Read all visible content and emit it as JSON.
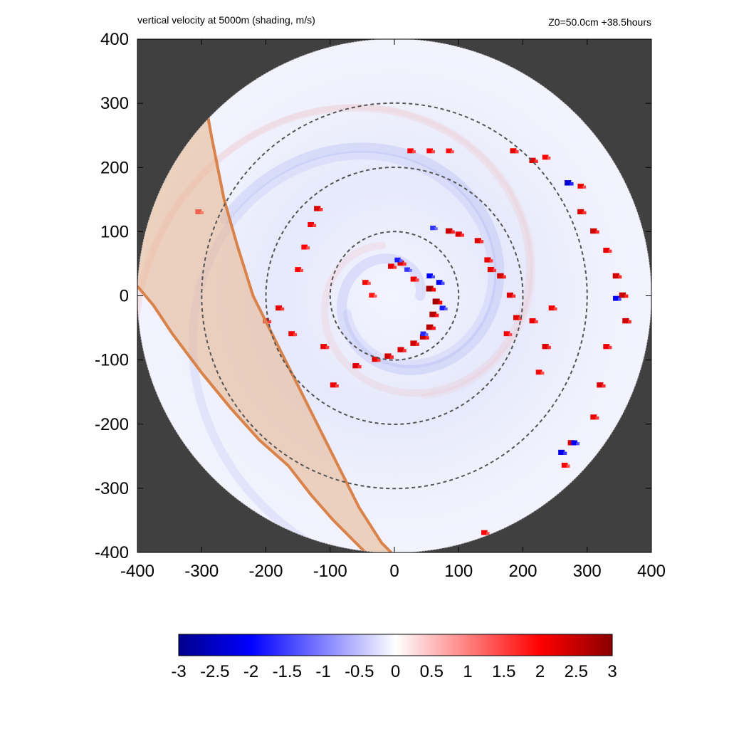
{
  "chart_data": {
    "type": "heatmap",
    "title": "vertical velocity at 5000m (shading, m/s)",
    "subtitle": "Z0=50.0cm  +38.5hours",
    "xlabel": "",
    "ylabel": "",
    "xlim": [
      -400,
      400
    ],
    "ylim": [
      -400,
      400
    ],
    "x_ticks": [
      "-400",
      "-300",
      "-200",
      "-100",
      "0",
      "100",
      "200",
      "300",
      "400"
    ],
    "y_ticks": [
      "400",
      "300",
      "200",
      "100",
      "0",
      "-100",
      "-200",
      "-300",
      "-400"
    ],
    "domain_radius": 400,
    "range_rings": [
      100,
      200,
      300
    ],
    "colorbar": {
      "range": [
        -3,
        3
      ],
      "ticks": [
        "-3",
        "-2.5",
        "-2",
        "-1.5",
        "-1",
        "-0.5",
        "0",
        "0.5",
        "1",
        "1.5",
        "2",
        "2.5",
        "3"
      ],
      "colors": [
        "#00008b",
        "#0000ff",
        "#ffffff",
        "#ff0000",
        "#8b0000"
      ]
    },
    "colors": {
      "outside_domain": "#404040",
      "land_band_fill": "#e8b48c",
      "land_band_edge": "#d9824a",
      "ring": "#555555"
    },
    "land_band": {
      "inner_edge": [
        [
          -290,
          278
        ],
        [
          -285,
          250
        ],
        [
          -275,
          200
        ],
        [
          -265,
          150
        ],
        [
          -245,
          80
        ],
        [
          -220,
          0
        ],
        [
          -190,
          -60
        ],
        [
          -150,
          -140
        ],
        [
          -120,
          -200
        ],
        [
          -85,
          -270
        ],
        [
          -55,
          -330
        ],
        [
          -20,
          -385
        ],
        [
          -5,
          -400
        ]
      ],
      "outer_edge": [
        [
          -400,
          15
        ],
        [
          -375,
          -15
        ],
        [
          -345,
          -60
        ],
        [
          -300,
          -120
        ],
        [
          -255,
          -175
        ],
        [
          -210,
          -225
        ],
        [
          -165,
          -265
        ],
        [
          -130,
          -310
        ],
        [
          -95,
          -350
        ],
        [
          -60,
          -385
        ],
        [
          -45,
          -400
        ]
      ]
    },
    "hotspots": [
      {
        "x": 55,
        "y": 10,
        "w": 2.8
      },
      {
        "x": 65,
        "y": -10,
        "w": 2.8
      },
      {
        "x": 60,
        "y": -30,
        "w": 2.6
      },
      {
        "x": 55,
        "y": -50,
        "w": 2.6
      },
      {
        "x": 45,
        "y": -65,
        "w": 2.5
      },
      {
        "x": 30,
        "y": -75,
        "w": 2.4
      },
      {
        "x": 10,
        "y": -85,
        "w": 2.3
      },
      {
        "x": -10,
        "y": -95,
        "w": 2.4
      },
      {
        "x": -30,
        "y": -100,
        "w": 2.2
      },
      {
        "x": 10,
        "y": 50,
        "w": 2.3
      },
      {
        "x": -5,
        "y": 45,
        "w": 2.2
      },
      {
        "x": 30,
        "y": 25,
        "w": 2.1
      },
      {
        "x": 55,
        "y": 30,
        "w": -2.0
      },
      {
        "x": 70,
        "y": 20,
        "w": -2.0
      },
      {
        "x": 75,
        "y": -20,
        "w": -1.8
      },
      {
        "x": 45,
        "y": -60,
        "w": -1.7
      },
      {
        "x": 5,
        "y": 55,
        "w": -1.8
      },
      {
        "x": 20,
        "y": 40,
        "w": -1.6
      },
      {
        "x": 85,
        "y": 100,
        "w": 2.5
      },
      {
        "x": 130,
        "y": 85,
        "w": 2.3
      },
      {
        "x": 145,
        "y": 55,
        "w": 2.2
      },
      {
        "x": 165,
        "y": 30,
        "w": 2.4
      },
      {
        "x": 180,
        "y": 0,
        "w": 2.3
      },
      {
        "x": 190,
        "y": -35,
        "w": 2.2
      },
      {
        "x": 175,
        "y": -60,
        "w": 2.0
      },
      {
        "x": 150,
        "y": 40,
        "w": 2.2
      },
      {
        "x": 100,
        "y": 95,
        "w": 2.3
      },
      {
        "x": 60,
        "y": 105,
        "w": -1.6
      },
      {
        "x": -120,
        "y": 135,
        "w": 2.3
      },
      {
        "x": -130,
        "y": 110,
        "w": 2.1
      },
      {
        "x": -140,
        "y": 75,
        "w": 2.0
      },
      {
        "x": -150,
        "y": 40,
        "w": 2.0
      },
      {
        "x": -180,
        "y": -20,
        "w": 2.2
      },
      {
        "x": -200,
        "y": -40,
        "w": 2.2
      },
      {
        "x": -160,
        "y": -60,
        "w": 2.1
      },
      {
        "x": -110,
        "y": -80,
        "w": 2.2
      },
      {
        "x": -60,
        "y": -110,
        "w": 2.3
      },
      {
        "x": -95,
        "y": -140,
        "w": 2.2
      },
      {
        "x": -45,
        "y": 20,
        "w": 2.0
      },
      {
        "x": -35,
        "y": 0,
        "w": 1.8
      },
      {
        "x": 215,
        "y": -40,
        "w": 2.2
      },
      {
        "x": 235,
        "y": -80,
        "w": 2.3
      },
      {
        "x": 225,
        "y": -120,
        "w": 2.0
      },
      {
        "x": 245,
        "y": -20,
        "w": 2.1
      },
      {
        "x": 185,
        "y": 225,
        "w": 2.2
      },
      {
        "x": 215,
        "y": 210,
        "w": 2.3
      },
      {
        "x": 235,
        "y": 215,
        "w": 2.0
      },
      {
        "x": 25,
        "y": 225,
        "w": 2.0
      },
      {
        "x": 55,
        "y": 225,
        "w": 2.0
      },
      {
        "x": 85,
        "y": 225,
        "w": 1.9
      },
      {
        "x": 290,
        "y": 130,
        "w": 2.3
      },
      {
        "x": 310,
        "y": 100,
        "w": 2.4
      },
      {
        "x": 330,
        "y": 70,
        "w": 2.2
      },
      {
        "x": 345,
        "y": 30,
        "w": 2.4
      },
      {
        "x": 355,
        "y": 0,
        "w": 2.5
      },
      {
        "x": 360,
        "y": -40,
        "w": 2.4
      },
      {
        "x": 330,
        "y": -80,
        "w": 2.2
      },
      {
        "x": 320,
        "y": -140,
        "w": 2.3
      },
      {
        "x": 310,
        "y": -190,
        "w": 2.2
      },
      {
        "x": 275,
        "y": -230,
        "w": 2.3
      },
      {
        "x": 265,
        "y": -265,
        "w": 2.0
      },
      {
        "x": 260,
        "y": -245,
        "w": -2.2
      },
      {
        "x": 290,
        "y": 170,
        "w": 2.0
      },
      {
        "x": 270,
        "y": 175,
        "w": -2.4
      },
      {
        "x": 140,
        "y": -370,
        "w": 2.0
      },
      {
        "x": -305,
        "y": 130,
        "w": 2.1
      },
      {
        "x": 345,
        "y": -5,
        "w": -2.0
      },
      {
        "x": 280,
        "y": -230,
        "w": -2.0
      }
    ]
  }
}
